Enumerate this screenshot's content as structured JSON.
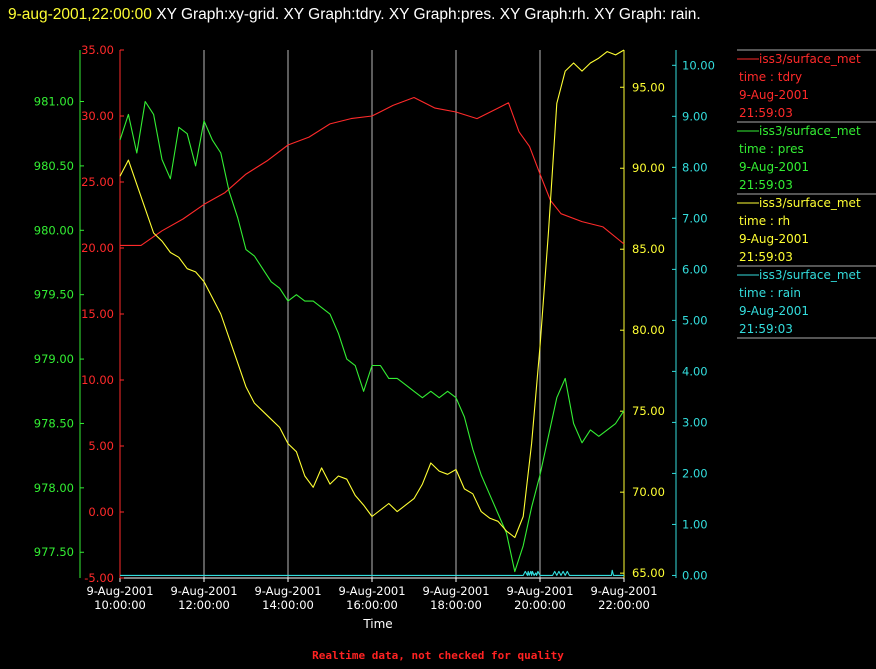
{
  "header": {
    "timestamp": "9-aug-2001,22:00:00",
    "graphs_text": "  XY Graph:xy-grid.  XY Graph:tdry.  XY Graph:pres.  XY Graph:rh.  XY Graph: rain."
  },
  "footer": {
    "quality_note": "Realtime data, not checked for quality"
  },
  "colors": {
    "tdry": "#ff2a2a",
    "pres": "#33ee33",
    "rh": "#ffff33",
    "rain": "#33dddd",
    "grid": "#ffffff"
  },
  "chart_data": {
    "type": "line",
    "xlabel": "Time",
    "x_ticks": [
      {
        "date": "9-Aug-2001",
        "time": "10:00:00"
      },
      {
        "date": "9-Aug-2001",
        "time": "12:00:00"
      },
      {
        "date": "9-Aug-2001",
        "time": "14:00:00"
      },
      {
        "date": "9-Aug-2001",
        "time": "16:00:00"
      },
      {
        "date": "9-Aug-2001",
        "time": "18:00:00"
      },
      {
        "date": "9-Aug-2001",
        "time": "20:00:00"
      },
      {
        "date": "9-Aug-2001",
        "time": "22:00:00"
      }
    ],
    "xlim": [
      "2001-08-09 10:00",
      "2001-08-09 22:00"
    ],
    "axes": {
      "tdry": {
        "ylim": [
          -5,
          35
        ],
        "ticks": [
          "-5.00",
          "0.00",
          "5.00",
          "10.00",
          "15.00",
          "20.00",
          "25.00",
          "30.00",
          "35.00"
        ]
      },
      "pres": {
        "ylim": [
          977.3,
          981.4
        ],
        "ticks": [
          "977.50",
          "978.00",
          "978.50",
          "979.00",
          "979.50",
          "980.00",
          "980.50",
          "981.00"
        ]
      },
      "rh": {
        "ylim": [
          64.7,
          97.3
        ],
        "ticks": [
          "65.00",
          "70.00",
          "75.00",
          "80.00",
          "85.00",
          "90.00",
          "95.00"
        ]
      },
      "rain": {
        "ylim": [
          -0.05,
          10.3
        ],
        "ticks": [
          "0.00",
          "1.00",
          "2.00",
          "3.00",
          "4.00",
          "5.00",
          "6.00",
          "7.00",
          "8.00",
          "9.00",
          "10.00"
        ]
      }
    },
    "legend": {
      "position": "right",
      "entries": [
        {
          "key": "tdry",
          "name": "iss3/surface_met",
          "var": "time : tdry",
          "date": "9-Aug-2001",
          "time": "21:59:03"
        },
        {
          "key": "pres",
          "name": "iss3/surface_met",
          "var": "time : pres",
          "date": "9-Aug-2001",
          "time": "21:59:03"
        },
        {
          "key": "rh",
          "name": "iss3/surface_met",
          "var": "time : rh",
          "date": "9-Aug-2001",
          "time": "21:59:03"
        },
        {
          "key": "rain",
          "name": "iss3/surface_met",
          "var": "time : rain",
          "date": "9-Aug-2001",
          "time": "21:59:03"
        }
      ]
    },
    "series": [
      {
        "key": "tdry",
        "x_hours": [
          10,
          10.5,
          11,
          11.5,
          12,
          12.5,
          13,
          13.5,
          14,
          14.5,
          15,
          15.5,
          16,
          16.5,
          17,
          17.5,
          18,
          18.5,
          19,
          19.25,
          19.5,
          19.75,
          20,
          20.25,
          20.5,
          21,
          21.5,
          22
        ],
        "values": [
          20.2,
          20.2,
          21.3,
          22.2,
          23.3,
          24.2,
          25.6,
          26.6,
          27.8,
          28.4,
          29.4,
          29.8,
          30.0,
          30.8,
          31.4,
          30.6,
          30.3,
          29.8,
          30.6,
          31.0,
          28.8,
          27.7,
          25.6,
          23.6,
          22.6,
          22.0,
          21.6,
          20.3
        ]
      },
      {
        "key": "pres",
        "x_hours": [
          10,
          10.2,
          10.4,
          10.6,
          10.8,
          11,
          11.2,
          11.4,
          11.6,
          11.8,
          12,
          12.2,
          12.4,
          12.6,
          12.8,
          13,
          13.2,
          13.4,
          13.6,
          13.8,
          14,
          14.2,
          14.4,
          14.6,
          14.8,
          15,
          15.2,
          15.4,
          15.6,
          15.8,
          16,
          16.2,
          16.4,
          16.6,
          16.8,
          17,
          17.2,
          17.4,
          17.6,
          17.8,
          18,
          18.2,
          18.4,
          18.6,
          18.8,
          19,
          19.2,
          19.4,
          19.6,
          19.8,
          20,
          20.2,
          20.4,
          20.6,
          20.8,
          21,
          21.2,
          21.4,
          21.6,
          21.8,
          22
        ],
        "values": [
          980.7,
          980.9,
          980.6,
          981.0,
          980.9,
          980.55,
          980.4,
          980.8,
          980.75,
          980.5,
          980.85,
          980.7,
          980.6,
          980.3,
          980.1,
          979.85,
          979.8,
          979.7,
          979.6,
          979.55,
          979.45,
          979.5,
          979.45,
          979.45,
          979.4,
          979.35,
          979.2,
          979.0,
          978.95,
          978.75,
          978.95,
          978.95,
          978.85,
          978.85,
          978.8,
          978.75,
          978.7,
          978.75,
          978.7,
          978.75,
          978.7,
          978.55,
          978.3,
          978.1,
          977.95,
          977.8,
          977.65,
          977.35,
          977.55,
          977.85,
          978.1,
          978.4,
          978.7,
          978.85,
          978.5,
          978.35,
          978.45,
          978.4,
          978.45,
          978.5,
          978.6
        ]
      },
      {
        "key": "rh",
        "x_hours": [
          10,
          10.2,
          10.4,
          10.6,
          10.8,
          11,
          11.2,
          11.4,
          11.6,
          11.8,
          12,
          12.2,
          12.4,
          12.6,
          12.8,
          13,
          13.2,
          13.4,
          13.6,
          13.8,
          14,
          14.2,
          14.4,
          14.6,
          14.8,
          15,
          15.2,
          15.4,
          15.6,
          15.8,
          16,
          16.2,
          16.4,
          16.6,
          16.8,
          17,
          17.2,
          17.4,
          17.6,
          17.8,
          18,
          18.2,
          18.4,
          18.6,
          18.8,
          19,
          19.2,
          19.4,
          19.6,
          19.8,
          20,
          20.2,
          20.4,
          20.6,
          20.8,
          21,
          21.2,
          21.4,
          21.6,
          21.8,
          22
        ],
        "values": [
          89.5,
          90.5,
          89.0,
          87.5,
          86.0,
          85.5,
          84.8,
          84.5,
          83.8,
          83.6,
          83.0,
          82.0,
          81.0,
          79.5,
          78.0,
          76.5,
          75.5,
          75.0,
          74.5,
          74.0,
          73.0,
          72.5,
          71.0,
          70.3,
          71.5,
          70.5,
          71.0,
          70.8,
          69.8,
          69.2,
          68.5,
          68.9,
          69.3,
          68.8,
          69.2,
          69.6,
          70.5,
          71.8,
          71.3,
          71.1,
          71.4,
          70.2,
          69.9,
          68.8,
          68.4,
          68.2,
          67.6,
          67.2,
          68.5,
          73.0,
          79.0,
          86.0,
          94.0,
          96.0,
          96.5,
          96.0,
          96.5,
          96.8,
          97.2,
          97.0,
          97.3
        ]
      },
      {
        "key": "rain",
        "x_hours": [
          10,
          19.6,
          19.65,
          19.7,
          19.72,
          19.74,
          19.78,
          19.8,
          19.82,
          19.86,
          19.9,
          19.92,
          19.95,
          20,
          20.1,
          20.2,
          20.3,
          20.35,
          20.4,
          20.45,
          20.5,
          20.55,
          20.6,
          20.65,
          20.7,
          20.8,
          21,
          21.5,
          21.7,
          21.72,
          21.75,
          22
        ],
        "values": [
          0,
          0,
          0.08,
          0,
          0.08,
          0,
          0.08,
          0,
          0.08,
          0,
          0.05,
          0,
          0.08,
          0,
          0,
          0,
          0,
          0.08,
          0,
          0.08,
          0,
          0.08,
          0,
          0.08,
          0,
          0,
          0,
          0,
          0,
          0.1,
          0,
          0
        ]
      }
    ]
  }
}
